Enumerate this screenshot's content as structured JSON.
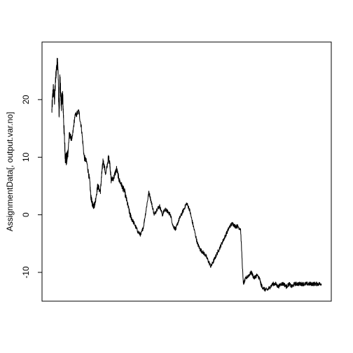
{
  "chart_data": {
    "type": "line",
    "title": "",
    "xlabel": "",
    "ylabel": "AssignmentData[, output.var.no]",
    "ylim": [
      -15,
      30
    ],
    "y_ticks": [
      {
        "value": -10,
        "label": "-10"
      },
      {
        "value": 0,
        "label": "0"
      },
      {
        "value": 10,
        "label": "10"
      },
      {
        "value": 20,
        "label": "20"
      }
    ],
    "x_ticks": [],
    "grid": false,
    "series": [
      {
        "name": "AssignmentData[, output.var.no]",
        "color": "#000000",
        "x": [
          0,
          0.005,
          0.01,
          0.016,
          0.022,
          0.027,
          0.03,
          0.035,
          0.04,
          0.045,
          0.05,
          0.055,
          0.06,
          0.065,
          0.075,
          0.085,
          0.1,
          0.11,
          0.12,
          0.13,
          0.14,
          0.145,
          0.15,
          0.155,
          0.16,
          0.17,
          0.18,
          0.185,
          0.19,
          0.2,
          0.21,
          0.215,
          0.22,
          0.23,
          0.24,
          0.25,
          0.26,
          0.27,
          0.28,
          0.29,
          0.3,
          0.31,
          0.32,
          0.33,
          0.34,
          0.35,
          0.36,
          0.37,
          0.38,
          0.39,
          0.4,
          0.41,
          0.42,
          0.43,
          0.44,
          0.45,
          0.46,
          0.47,
          0.48,
          0.49,
          0.5,
          0.51,
          0.52,
          0.53,
          0.54,
          0.55,
          0.56,
          0.57,
          0.58,
          0.59,
          0.6,
          0.61,
          0.62,
          0.63,
          0.64,
          0.65,
          0.66,
          0.67,
          0.68,
          0.69,
          0.7,
          0.71,
          0.72,
          0.73,
          0.74,
          0.75,
          0.76,
          0.77,
          0.775,
          0.78,
          0.79,
          0.8,
          0.81,
          0.82,
          0.83,
          0.84,
          0.85,
          0.86,
          0.87,
          0.88,
          0.89,
          0.9,
          0.91,
          0.92,
          0.93,
          0.94,
          0.95,
          0.96,
          0.97,
          0.98,
          0.99,
          1.0
        ],
        "values": [
          18,
          22,
          20,
          25,
          27,
          17,
          24,
          19,
          21,
          15,
          10,
          9.5,
          11,
          14,
          13,
          17,
          18,
          15,
          10,
          9,
          6,
          3,
          2,
          1.5,
          2,
          5,
          4,
          7,
          9.5,
          7,
          10,
          9,
          6,
          6.5,
          8,
          6,
          5,
          4,
          2,
          0,
          -1,
          -2,
          -3,
          -3.5,
          -2,
          1,
          4,
          2,
          0,
          1,
          1.5,
          0,
          1,
          0.5,
          0,
          -2,
          -2.5,
          -1,
          0,
          1,
          2,
          1,
          -1,
          -3,
          -5,
          -6,
          -6.5,
          -7,
          -8,
          -9,
          -8,
          -7,
          -6,
          -5,
          -4,
          -3,
          -2,
          -1.5,
          -2,
          -2,
          -2.5,
          -12,
          -11,
          -10.5,
          -10,
          -11,
          -10.5,
          -11,
          -12,
          -12.5,
          -13,
          -13,
          -12.5,
          -12,
          -12,
          -12.5,
          -12,
          -12,
          -12.5,
          -12,
          -12.5,
          -12,
          -12,
          -12,
          -12,
          -12,
          -12,
          -12,
          -12,
          -12,
          -12,
          -12
        ]
      }
    ]
  }
}
